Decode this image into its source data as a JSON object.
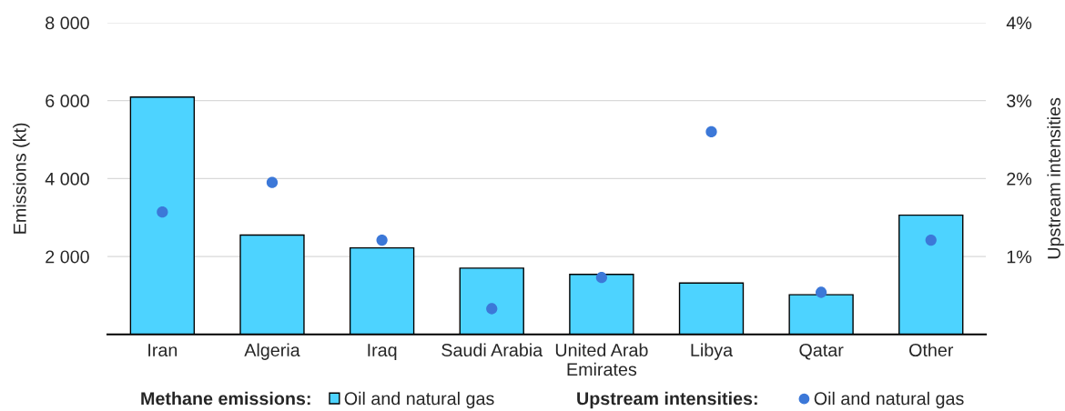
{
  "chart_data": {
    "type": "bar",
    "categories": [
      "Iran",
      "Algeria",
      "Iraq",
      "Saudi Arabia",
      "United Arab\nEmirates",
      "Libya",
      "Qatar",
      "Other"
    ],
    "series": [
      {
        "name": "Oil and natural gas",
        "color": "#4dd3ff",
        "values": [
          6090,
          2550,
          2220,
          1700,
          1540,
          1320,
          1020,
          3060
        ]
      },
      {
        "name": "Oil and natural gas",
        "type": "scatter",
        "axis": "y2",
        "color": "#3c78d8",
        "values": [
          1.57,
          1.95,
          1.21,
          0.33,
          0.73,
          2.6,
          0.54,
          1.21
        ]
      }
    ],
    "ylabel": "Emissions (kt)",
    "y2label": "Upstream intensities",
    "ylim": [
      0,
      8000
    ],
    "yticks": [
      {
        "value": 2000,
        "label": "2 000"
      },
      {
        "value": 4000,
        "label": "4 000"
      },
      {
        "value": 6000,
        "label": "6 000"
      },
      {
        "value": 8000,
        "label": "8 000"
      }
    ],
    "y2lim": [
      0,
      4
    ],
    "y2ticks": [
      {
        "value": 1,
        "label": "1%"
      },
      {
        "value": 2,
        "label": "2%"
      },
      {
        "value": 3,
        "label": "3%"
      },
      {
        "value": 4,
        "label": "4%"
      }
    ],
    "annotations": [
      "Methane emissions:",
      "Upstream intensities:"
    ],
    "grid": "y",
    "legend": "bottom",
    "marker": "circle"
  }
}
